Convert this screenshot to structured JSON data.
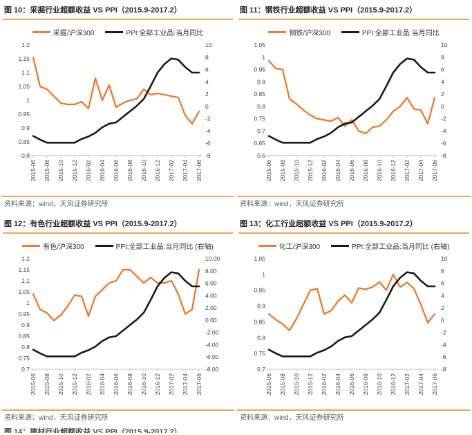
{
  "page": {
    "next_figure_title_partial": "图 14：建材行业超额收益 VS PPI（2015.9-2017.2）"
  },
  "colors": {
    "series_orange": "#ED7D31",
    "series_black": "#1A1A1A",
    "rule_orange": "#F2A35C",
    "tick_text": "#404040",
    "source_text": "#595959",
    "axis_line": "#BFBFBF"
  },
  "chart_data": [
    {
      "figure_id": "图 10",
      "type": "line",
      "title": "图 10：采掘行业超额收益 VS PPI（2015.9-2017.2）",
      "source": "资料来源：wind，天风证券研究所",
      "grid": false,
      "legend_position": "top",
      "x": [
        "2015-06",
        "2015-07",
        "2015-08",
        "2015-09",
        "2015-10",
        "2015-11",
        "2015-12",
        "2016-01",
        "2016-02",
        "2016-03",
        "2016-04",
        "2016-05",
        "2016-06",
        "2016-07",
        "2016-08",
        "2016-09",
        "2016-10",
        "2016-11",
        "2016-12",
        "2017-01",
        "2017-02",
        "2017-03",
        "2017-04",
        "2017-05",
        "2017-06"
      ],
      "x_tick_labels": [
        "2015-06",
        "2015-08",
        "2015-10",
        "2015-12",
        "2016-02",
        "2016-04",
        "2016-06",
        "2016-08",
        "2016-10",
        "2016-12",
        "2017-02",
        "2017-04",
        "2017-06"
      ],
      "left_axis": {
        "min": 0.8,
        "max": 1.2,
        "ticks": [
          "1.2",
          "1.15",
          "1.1",
          "1.05",
          "1",
          "0.95",
          "0.9",
          "0.85",
          "0.8"
        ]
      },
      "right_axis": {
        "min": -8,
        "max": 10,
        "ticks": [
          "10",
          "8",
          "6",
          "4",
          "2",
          "0",
          "-2",
          "-4",
          "-6",
          "-8"
        ]
      },
      "series": [
        {
          "name": "采掘/沪深300",
          "axis": "left",
          "color": "#ED7D31",
          "values": [
            1.155,
            1.05,
            1.04,
            1.015,
            0.99,
            0.985,
            0.985,
            0.995,
            0.97,
            1.08,
            1.0,
            1.055,
            0.975,
            0.99,
            1.0,
            1.005,
            1.04,
            1.02,
            1.025,
            1.02,
            1.015,
            1.01,
            0.945,
            0.915,
            0.96
          ]
        },
        {
          "name": "PPI:全部工业品:当月同比",
          "axis": "right",
          "color": "#1A1A1A",
          "values": [
            -4.8,
            -5.4,
            -5.9,
            -5.9,
            -5.9,
            -5.9,
            -5.9,
            -5.3,
            -4.9,
            -4.3,
            -3.4,
            -2.8,
            -2.6,
            -1.7,
            -0.8,
            0.1,
            1.2,
            3.3,
            5.5,
            6.9,
            7.8,
            7.6,
            6.4,
            5.5,
            5.5
          ]
        }
      ]
    },
    {
      "figure_id": "图 11",
      "type": "line",
      "title": "图 11：钢铁行业超额收益 VS PPI（2015.9-2017.2）",
      "source": "资料来源：wind，天风证券研究所",
      "grid": false,
      "legend_position": "top",
      "x": [
        "2015-06",
        "2015-07",
        "2015-08",
        "2015-09",
        "2015-10",
        "2015-11",
        "2015-12",
        "2016-01",
        "2016-02",
        "2016-03",
        "2016-04",
        "2016-05",
        "2016-06",
        "2016-07",
        "2016-08",
        "2016-09",
        "2016-10",
        "2016-11",
        "2016-12",
        "2017-01",
        "2017-02",
        "2017-03",
        "2017-04",
        "2017-05",
        "2017-06"
      ],
      "x_tick_labels": [
        "2015-06",
        "2015-08",
        "2015-10",
        "2015-12",
        "2016-02",
        "2016-04",
        "2016-06",
        "2016-08",
        "2016-10",
        "2016-12",
        "2017-02",
        "2017-04",
        "2017-06"
      ],
      "left_axis": {
        "min": 0.6,
        "max": 1.05,
        "ticks": [
          "1.05",
          "1",
          "0.95",
          "0.9",
          "0.85",
          "0.8",
          "0.75",
          "0.7",
          "0.65",
          "0.6"
        ]
      },
      "right_axis": {
        "min": -8,
        "max": 10,
        "ticks": [
          "10",
          "8",
          "6",
          "4",
          "2",
          "0",
          "-2",
          "-4",
          "-6",
          "-8"
        ]
      },
      "series": [
        {
          "name": "钢铁/沪深300",
          "axis": "left",
          "color": "#ED7D31",
          "values": [
            0.985,
            0.955,
            0.95,
            0.83,
            0.81,
            0.785,
            0.765,
            0.75,
            0.745,
            0.74,
            0.755,
            0.72,
            0.745,
            0.7,
            0.69,
            0.715,
            0.72,
            0.745,
            0.78,
            0.8,
            0.835,
            0.79,
            0.785,
            0.73,
            0.835
          ]
        },
        {
          "name": "PPI:全部工业品:当月同比",
          "axis": "right",
          "color": "#1A1A1A",
          "values": [
            -4.8,
            -5.4,
            -5.9,
            -5.9,
            -5.9,
            -5.9,
            -5.9,
            -5.3,
            -4.9,
            -4.3,
            -3.4,
            -2.8,
            -2.6,
            -1.7,
            -0.8,
            0.1,
            1.2,
            3.3,
            5.5,
            6.9,
            7.8,
            7.6,
            6.4,
            5.5,
            5.5
          ]
        }
      ]
    },
    {
      "figure_id": "图 12",
      "type": "line",
      "title": "图 12：有色行业超额收益 VS PPI（2015.9-2017.2）",
      "source": "资料来源：wind，天风证券研究所",
      "grid": false,
      "legend_position": "top",
      "x": [
        "2015-06",
        "2015-07",
        "2015-08",
        "2015-09",
        "2015-10",
        "2015-11",
        "2015-12",
        "2016-01",
        "2016-02",
        "2016-03",
        "2016-04",
        "2016-05",
        "2016-06",
        "2016-07",
        "2016-08",
        "2016-09",
        "2016-10",
        "2016-11",
        "2016-12",
        "2017-01",
        "2017-02",
        "2017-03",
        "2017-04",
        "2017-05",
        "2017-06"
      ],
      "x_tick_labels": [
        "2015-06",
        "2015-08",
        "2015-10",
        "2015-12",
        "2016-02",
        "2016-04",
        "2016-06",
        "2016-08",
        "2016-10",
        "2016-12",
        "2017-02",
        "2017-04",
        "2017-06"
      ],
      "left_axis": {
        "min": 0.7,
        "max": 1.2,
        "ticks": [
          "1.2",
          "1.15",
          "1.1",
          "1.05",
          "1",
          "0.95",
          "0.9",
          "0.85",
          "0.8",
          "0.75",
          "0.7"
        ]
      },
      "right_axis": {
        "min": -8,
        "max": 10,
        "ticks": [
          "10.00",
          "8.00",
          "6.00",
          "4.00",
          "2.00",
          "0.00",
          "-2.00",
          "-4.00",
          "-6.00",
          "-8.00"
        ]
      },
      "series": [
        {
          "name": "有色/沪深300",
          "axis": "left",
          "color": "#ED7D31",
          "values": [
            1.04,
            0.97,
            0.955,
            0.92,
            0.945,
            0.985,
            1.035,
            1.03,
            0.94,
            1.03,
            1.06,
            1.09,
            1.1,
            1.15,
            1.15,
            1.12,
            1.09,
            1.115,
            1.09,
            1.09,
            1.1,
            1.04,
            0.95,
            0.97,
            1.15
          ]
        },
        {
          "name": "PPI:全部工业品:当月同比 (右轴)",
          "axis": "right",
          "color": "#1A1A1A",
          "values": [
            -4.8,
            -5.4,
            -5.9,
            -5.9,
            -5.9,
            -5.9,
            -5.9,
            -5.3,
            -4.9,
            -4.3,
            -3.4,
            -2.8,
            -2.6,
            -1.7,
            -0.8,
            0.1,
            1.2,
            3.3,
            5.5,
            6.9,
            7.8,
            7.6,
            6.4,
            5.5,
            5.5
          ]
        }
      ]
    },
    {
      "figure_id": "图 13",
      "type": "line",
      "title": "图 13：化工行业超额收益 VS PPI（2015.9-2017.2）",
      "source": "资料来源：wind，天风证券研究所",
      "grid": false,
      "legend_position": "top",
      "x": [
        "2015-06",
        "2015-07",
        "2015-08",
        "2015-09",
        "2015-10",
        "2015-11",
        "2015-12",
        "2016-01",
        "2016-02",
        "2016-03",
        "2016-04",
        "2016-05",
        "2016-06",
        "2016-07",
        "2016-08",
        "2016-09",
        "2016-10",
        "2016-11",
        "2016-12",
        "2017-01",
        "2017-02",
        "2017-03",
        "2017-04",
        "2017-05",
        "2017-06"
      ],
      "x_tick_labels": [
        "2015-06",
        "2015-08",
        "2015-10",
        "2015-12",
        "2016-02",
        "2016-04",
        "2016-06",
        "2016-08",
        "2016-10",
        "2016-12",
        "2017-02",
        "2017-04",
        "2017-06"
      ],
      "left_axis": {
        "min": 0.7,
        "max": 1.05,
        "ticks": [
          "1.05",
          "1",
          "0.95",
          "0.9",
          "0.85",
          "0.8",
          "0.75",
          "0.7"
        ]
      },
      "right_axis": {
        "min": -8,
        "max": 10,
        "ticks": [
          "10",
          "8",
          "6",
          "4",
          "2",
          "0",
          "-2",
          "-4",
          "-6",
          "-8"
        ]
      },
      "series": [
        {
          "name": "化工/沪深300",
          "axis": "left",
          "color": "#ED7D31",
          "values": [
            0.875,
            0.857,
            0.843,
            0.823,
            0.86,
            0.905,
            0.95,
            0.955,
            0.875,
            0.885,
            0.915,
            0.935,
            0.91,
            0.957,
            0.953,
            0.96,
            0.976,
            0.95,
            1.0,
            0.96,
            0.975,
            0.955,
            0.905,
            0.847,
            0.875
          ]
        },
        {
          "name": "PPI:全部工业品:当月同比 (右轴)",
          "axis": "right",
          "color": "#1A1A1A",
          "values": [
            -4.8,
            -5.4,
            -5.9,
            -5.9,
            -5.9,
            -5.9,
            -5.9,
            -5.3,
            -4.9,
            -4.3,
            -3.4,
            -2.8,
            -2.6,
            -1.7,
            -0.8,
            0.1,
            1.2,
            3.3,
            5.5,
            6.9,
            7.8,
            7.6,
            6.4,
            5.5,
            5.5
          ]
        }
      ]
    }
  ]
}
